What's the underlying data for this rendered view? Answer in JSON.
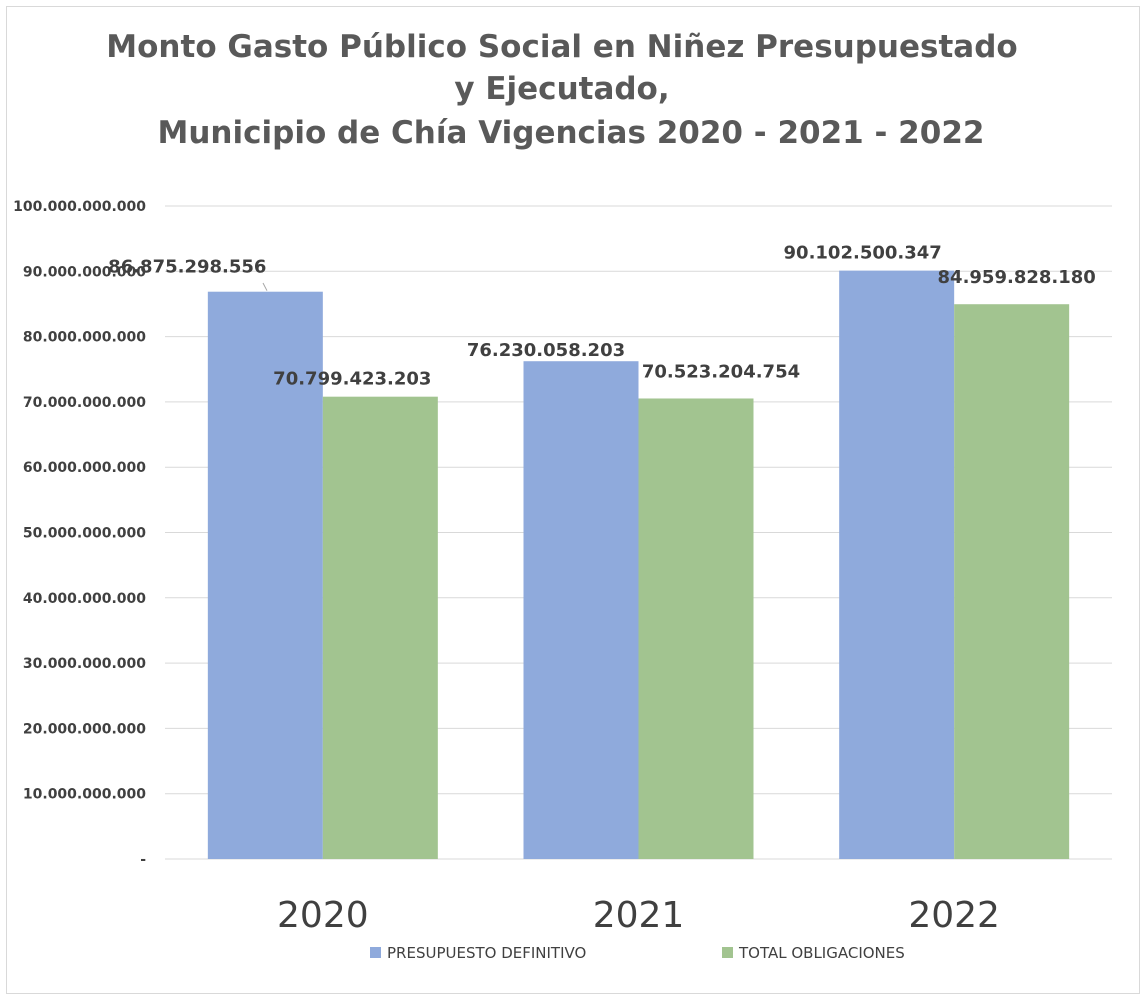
{
  "chart_data": {
    "type": "bar",
    "title_lines": [
      "Monto Gasto Público Social en Niñez  Presupuestado",
      "y  Ejecutado,",
      "Municipio de Chía Vigencias 2020 - 2021 - 2022"
    ],
    "categories": [
      "2020",
      "2021",
      "2022"
    ],
    "series": [
      {
        "name": "PRESUPUESTO DEFINITIVO",
        "values": [
          86875298556,
          76230058203,
          90102500347
        ],
        "labels": [
          "86.875.298.556",
          "76.230.058.203",
          "90.102.500.347"
        ],
        "color": "#8faadc"
      },
      {
        "name": "TOTAL OBLIGACIONES",
        "values": [
          70799423203,
          70523204754,
          84959828180
        ],
        "labels": [
          "70.799.423.203",
          "70.523.204.754",
          "84.959.828.180"
        ],
        "color": "#a2c490"
      }
    ],
    "ylim": [
      0,
      100000000000
    ],
    "yticks": [
      {
        "value": 0,
        "label": "-"
      },
      {
        "value": 10000000000,
        "label": "10.000.000.000"
      },
      {
        "value": 20000000000,
        "label": "20.000.000.000"
      },
      {
        "value": 30000000000,
        "label": "30.000.000.000"
      },
      {
        "value": 40000000000,
        "label": "40.000.000.000"
      },
      {
        "value": 50000000000,
        "label": "50.000.000.000"
      },
      {
        "value": 60000000000,
        "label": "60.000.000.000"
      },
      {
        "value": 70000000000,
        "label": "70.000.000.000"
      },
      {
        "value": 80000000000,
        "label": "80.000.000.000"
      },
      {
        "value": 90000000000,
        "label": "90.000.000.000"
      },
      {
        "value": 100000000000,
        "label": "100.000.000.000"
      }
    ],
    "grid": true,
    "legend_position": "bottom",
    "xlabel": "",
    "ylabel": ""
  }
}
